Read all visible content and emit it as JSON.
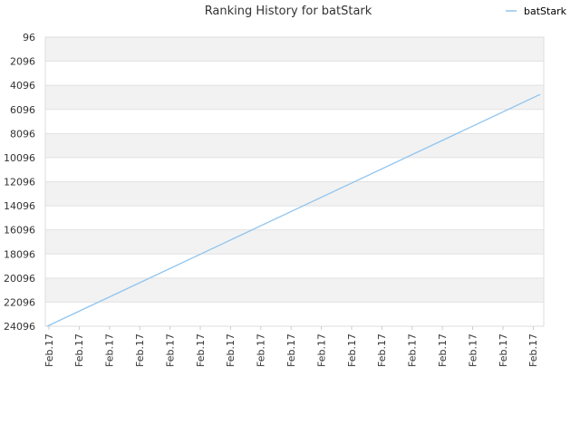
{
  "chart_data": {
    "type": "line",
    "title": "Ranking History for batStark",
    "xlabel": "",
    "ylabel": "",
    "y_reversed": true,
    "ylim": [
      96,
      24096
    ],
    "y_ticks": [
      96,
      2096,
      4096,
      6096,
      8096,
      10096,
      12096,
      14096,
      16096,
      18096,
      20096,
      22096,
      24096
    ],
    "y_tick_labels": [
      "96",
      "2096",
      "4096",
      "6096",
      "8096",
      "10096",
      "12096",
      "14096",
      "16096",
      "18096",
      "20096",
      "22096",
      "24096"
    ],
    "x_tick_labels": [
      "Feb.17",
      "Feb.17",
      "Feb.17",
      "Feb.17",
      "Feb.17",
      "Feb.17",
      "Feb.17",
      "Feb.17",
      "Feb.17",
      "Feb.17",
      "Feb.17",
      "Feb.17",
      "Feb.17",
      "Feb.17",
      "Feb.17",
      "Feb.17",
      "Feb.17"
    ],
    "grid": "horizontal alternating bands",
    "legend_position": "top-right",
    "series": [
      {
        "name": "batStark",
        "color": "#90c4ee",
        "x": [
          0,
          1
        ],
        "values": [
          24096,
          4850
        ]
      }
    ]
  }
}
